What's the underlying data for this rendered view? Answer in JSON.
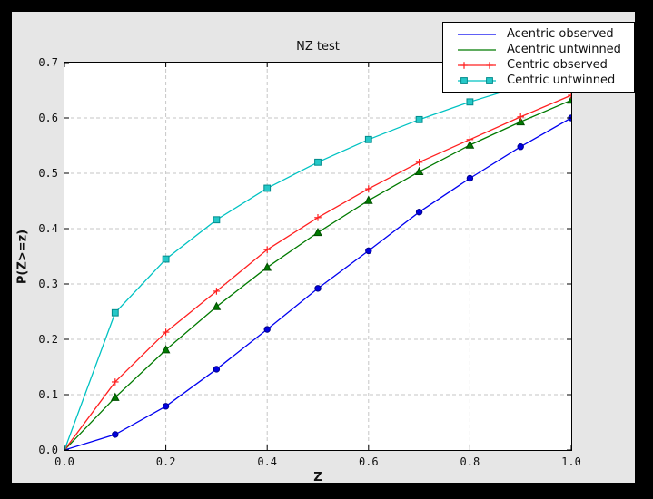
{
  "colors": {
    "window_frame": "#000000",
    "figure_background": "#e6e6e6",
    "plot_background": "#ffffff",
    "grid": "#c6c6c6",
    "axis_frame": "#000000"
  },
  "chart_data": {
    "type": "line",
    "title": "NZ test",
    "xlabel": "Z",
    "ylabel": "P(Z>=z)",
    "xlim": [
      0.0,
      1.0
    ],
    "ylim": [
      0.0,
      0.7
    ],
    "xtick_labels": [
      "0.0",
      "0.2",
      "0.4",
      "0.6",
      "0.8",
      "1.0"
    ],
    "ytick_labels": [
      "0.0",
      "0.1",
      "0.2",
      "0.3",
      "0.4",
      "0.5",
      "0.6",
      "0.7"
    ],
    "grid": true,
    "legend_position": "upper right",
    "x": [
      0.0,
      0.1,
      0.2,
      0.3,
      0.4,
      0.5,
      0.6,
      0.7,
      0.8,
      0.9,
      1.0
    ],
    "series": [
      {
        "name": "Acentric observed",
        "color": "#0000f0",
        "marker": "circle",
        "marker_fill": "#0000e0",
        "marker_edge": "#00008b",
        "legend_marker": false,
        "values": [
          0.0,
          0.028,
          0.079,
          0.146,
          0.218,
          0.292,
          0.36,
          0.43,
          0.491,
          0.548,
          0.6
        ]
      },
      {
        "name": "Acentric untwinned",
        "color": "#007a00",
        "marker": "triangle",
        "marker_fill": "#007a00",
        "marker_edge": "#004d00",
        "legend_marker": false,
        "values": [
          0.0,
          0.095,
          0.181,
          0.259,
          0.33,
          0.393,
          0.451,
          0.503,
          0.551,
          0.593,
          0.632
        ]
      },
      {
        "name": "Centric observed",
        "color": "#ff2020",
        "marker": "plus",
        "marker_fill": "#ff2020",
        "marker_edge": "#ff2020",
        "legend_marker": true,
        "values": [
          0.0,
          0.123,
          0.213,
          0.287,
          0.362,
          0.42,
          0.472,
          0.52,
          0.561,
          0.602,
          0.641
        ]
      },
      {
        "name": "Centric untwinned",
        "color": "#00c2c2",
        "marker": "square",
        "marker_fill": "#25c8c8",
        "marker_edge": "#008b8b",
        "legend_marker": true,
        "values": [
          0.0,
          0.248,
          0.345,
          0.416,
          0.473,
          0.52,
          0.561,
          0.597,
          0.629,
          0.657,
          0.683
        ]
      }
    ]
  }
}
